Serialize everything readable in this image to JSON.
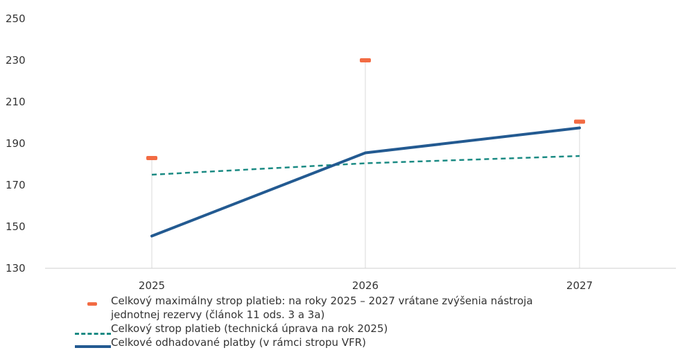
{
  "chart_data": {
    "type": "line",
    "categories": [
      "2025",
      "2026",
      "2027"
    ],
    "ylim": [
      130,
      250
    ],
    "yticks": [
      130,
      150,
      170,
      190,
      210,
      230,
      250
    ],
    "grid": false,
    "legend_position": "bottom",
    "series": [
      {
        "name": "Celkový maximálny strop platieb: na roky 2025 – 2027 vrátane zvýšenia nástroja jednotnej rezervy (článok 11 ods. 3 a 3a)",
        "style": "marker",
        "color": "#f26b43",
        "values": [
          183,
          230,
          200.5
        ]
      },
      {
        "name": "Celkový strop platieb (technická úprava na rok 2025)",
        "style": "dashed",
        "color": "#1a8a83",
        "values": [
          175,
          180.5,
          184
        ]
      },
      {
        "name": "Celkové odhadované platby (v rámci stropu VFR)",
        "style": "solid",
        "color": "#235a91",
        "values": [
          145.5,
          185.5,
          197.5
        ]
      }
    ]
  }
}
